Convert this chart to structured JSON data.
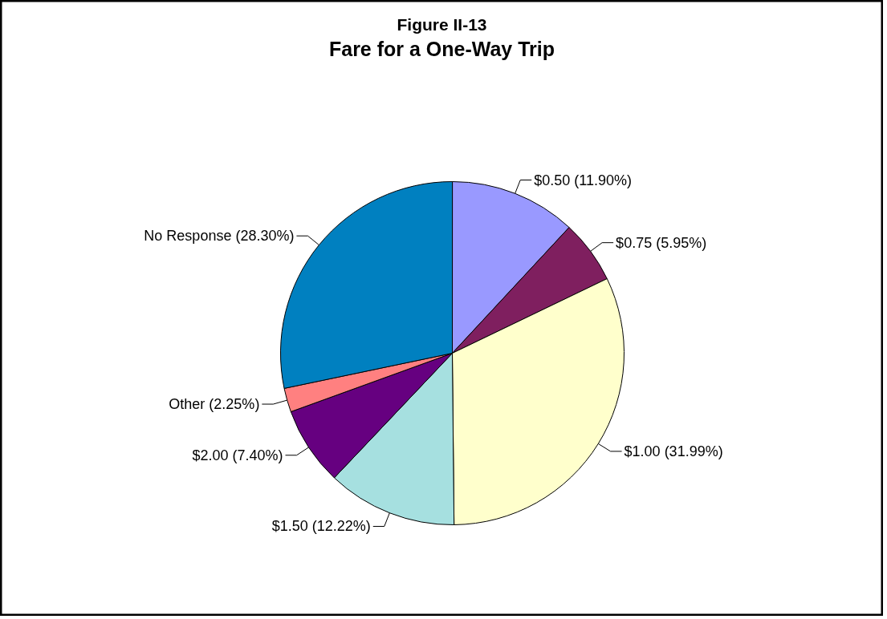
{
  "chart_data": {
    "type": "pie",
    "title": "Figure II-13",
    "subtitle": "Fare for a One-Way Trip",
    "categories": [
      "$0.50",
      "$0.75",
      "$1.00",
      "$1.50",
      "$2.00",
      "Other",
      "No Response"
    ],
    "values": [
      11.9,
      5.95,
      31.99,
      12.22,
      7.4,
      2.25,
      28.3
    ],
    "value_labels": [
      "(11.90%)",
      "(5.95%)",
      "(31.99%)",
      "(12.22%)",
      "(7.40%)",
      "(2.25%)",
      "(28.30%)"
    ],
    "colors": [
      "#9999ff",
      "#7f1f5f",
      "#ffffcc",
      "#a6e0e0",
      "#660080",
      "#ff8080",
      "#0080c0"
    ]
  }
}
